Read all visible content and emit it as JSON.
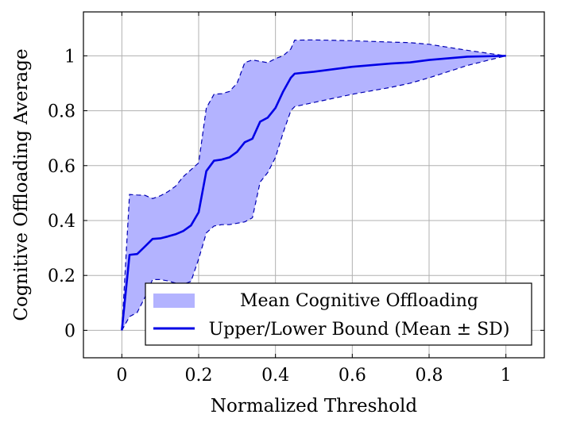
{
  "chart_data": {
    "type": "line",
    "title": "",
    "xlabel": "Normalized Threshold",
    "ylabel": "Cognitive Offloading Average",
    "xlim": [
      -0.1,
      1.1
    ],
    "ylim": [
      -0.1,
      1.16
    ],
    "xticks": [
      0,
      0.2,
      0.4,
      0.6,
      0.8,
      1
    ],
    "xtick_labels": [
      "0",
      "0.2",
      "0.4",
      "0.6",
      "0.8",
      "1"
    ],
    "yticks": [
      0,
      0.2,
      0.4,
      0.6,
      0.8,
      1
    ],
    "ytick_labels": [
      "0",
      "0.2",
      "0.4",
      "0.6",
      "0.8",
      "1"
    ],
    "grid": true,
    "legend_position": "bottom-right",
    "legend": [
      {
        "label": "Mean Cognitive Offloading",
        "kind": "band"
      },
      {
        "label": "Upper/Lower Bound (Mean ± SD)",
        "kind": "line"
      }
    ],
    "colors": {
      "band_fill": "#b3b3ff",
      "line": "#0000e6",
      "dashed_bound": "#0000b3"
    },
    "series": [
      {
        "kind": "line",
        "x": [
          0,
          0.02,
          0.04,
          0.06,
          0.08,
          0.1,
          0.12,
          0.14,
          0.16,
          0.18,
          0.2,
          0.22,
          0.24,
          0.26,
          0.28,
          0.3,
          0.32,
          0.34,
          0.36,
          0.38,
          0.4,
          0.42,
          0.44,
          0.45,
          0.5,
          0.6,
          0.7,
          0.75,
          0.8,
          0.9,
          1.0
        ],
        "y": [
          0,
          0.275,
          0.278,
          0.305,
          0.333,
          0.335,
          0.342,
          0.35,
          0.362,
          0.382,
          0.43,
          0.58,
          0.618,
          0.622,
          0.63,
          0.65,
          0.685,
          0.698,
          0.76,
          0.775,
          0.81,
          0.87,
          0.92,
          0.935,
          0.942,
          0.96,
          0.972,
          0.976,
          0.985,
          0.997,
          1.0
        ]
      },
      {
        "kind": "band",
        "x": [
          0,
          0.02,
          0.04,
          0.06,
          0.08,
          0.1,
          0.12,
          0.14,
          0.16,
          0.18,
          0.2,
          0.22,
          0.24,
          0.26,
          0.28,
          0.3,
          0.32,
          0.34,
          0.36,
          0.38,
          0.4,
          0.42,
          0.44,
          0.45,
          0.5,
          0.6,
          0.7,
          0.75,
          0.8,
          0.9,
          1.0
        ],
        "upper": [
          0,
          0.495,
          0.493,
          0.492,
          0.48,
          0.49,
          0.505,
          0.525,
          0.56,
          0.585,
          0.61,
          0.81,
          0.86,
          0.862,
          0.87,
          0.9,
          0.975,
          0.985,
          0.98,
          0.975,
          0.99,
          1.0,
          1.025,
          1.057,
          1.058,
          1.055,
          1.05,
          1.048,
          1.042,
          1.02,
          1.0
        ],
        "lower": [
          0,
          0.05,
          0.065,
          0.12,
          0.185,
          0.185,
          0.18,
          0.172,
          0.168,
          0.178,
          0.26,
          0.355,
          0.38,
          0.385,
          0.385,
          0.39,
          0.395,
          0.41,
          0.54,
          0.575,
          0.63,
          0.72,
          0.8,
          0.815,
          0.83,
          0.86,
          0.885,
          0.9,
          0.92,
          0.965,
          1.0
        ]
      }
    ]
  }
}
